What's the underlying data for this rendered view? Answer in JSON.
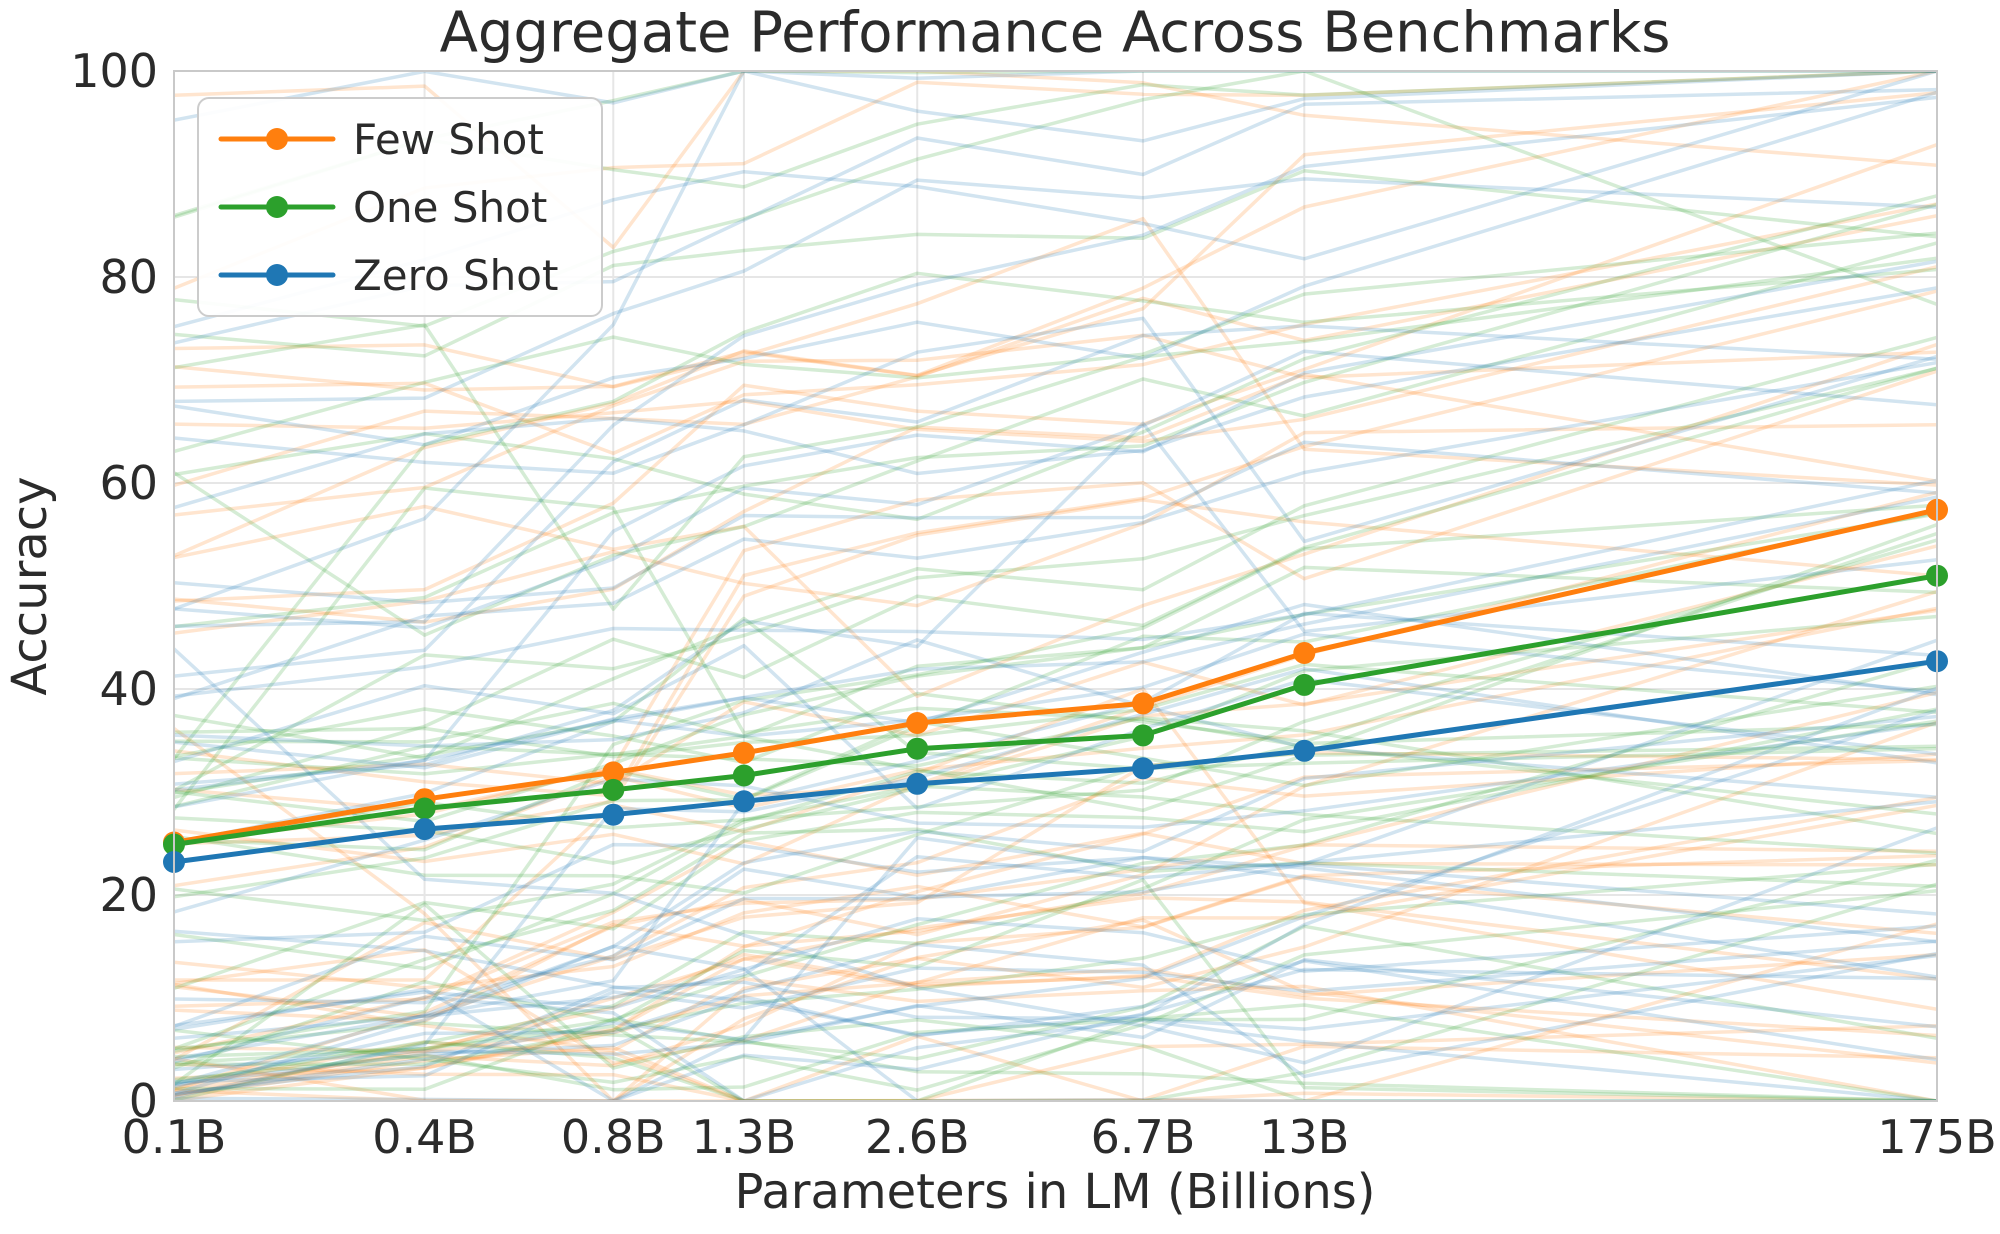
{
  "chart_data": {
    "type": "line",
    "title": "Aggregate Performance Across Benchmarks",
    "xlabel": "Parameters in LM (Billions)",
    "ylabel": "Accuracy",
    "x_scale": "log",
    "x_tick_labels": [
      "0.1B",
      "0.4B",
      "0.8B",
      "1.3B",
      "2.6B",
      "6.7B",
      "13B",
      "175B"
    ],
    "x_values_billions": [
      0.125,
      0.35,
      0.76,
      1.3,
      2.65,
      6.7,
      13,
      175
    ],
    "y_ticks": [
      0,
      20,
      40,
      60,
      80,
      100
    ],
    "y_tick_labels": [
      "0",
      "20",
      "40",
      "60",
      "80",
      "100"
    ],
    "ylim": [
      0,
      100
    ],
    "grid": true,
    "legend_position": "upper-left",
    "series": [
      {
        "label": "Few Shot",
        "color": "#ff7f0e",
        "values": [
          25.1,
          29.3,
          31.9,
          33.8,
          36.7,
          38.6,
          43.5,
          57.4
        ]
      },
      {
        "label": "One Shot",
        "color": "#2ca02c",
        "values": [
          24.9,
          28.4,
          30.2,
          31.6,
          34.2,
          35.5,
          40.4,
          51.0
        ]
      },
      {
        "label": "Zero Shot",
        "color": "#1f77b4",
        "values": [
          23.2,
          26.4,
          27.8,
          29.1,
          30.8,
          32.3,
          34.0,
          42.7
        ]
      }
    ],
    "background_lines": {
      "description": "faint individual benchmark curves, one bundle per series color",
      "per_series_count": 42,
      "opacity": 0.2,
      "stroke_width": 3.5,
      "seed": 11
    }
  },
  "colors": {
    "grid": "#e6e6e6",
    "spine": "#c9c9c9",
    "tick_text": "#2b2b2b"
  }
}
